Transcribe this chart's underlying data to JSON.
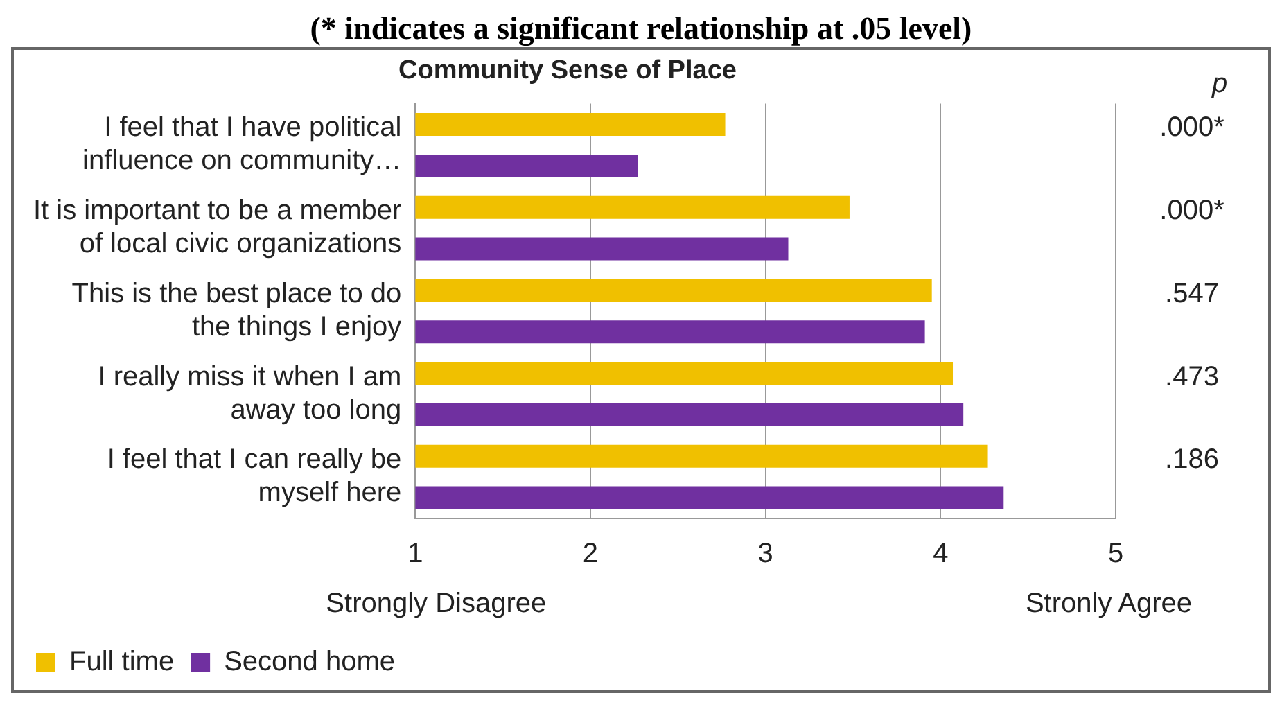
{
  "chart_data": {
    "type": "bar",
    "orientation": "horizontal",
    "title": "Community Sense of Place",
    "subtitle": "(* indicates a significant relationship at .05 level)",
    "categories": [
      "I feel that I have political influence on community…",
      "It is important to be a member of local civic organizations",
      "This is the best place to do the things I enjoy",
      "I really miss it when I am away too long",
      "I feel that I can really be myself here"
    ],
    "series": [
      {
        "name": "Full time",
        "color": "#f0c000",
        "values": [
          2.77,
          3.48,
          3.95,
          4.07,
          4.27
        ]
      },
      {
        "name": "Second home",
        "color": "#7030a0",
        "values": [
          2.27,
          3.13,
          3.91,
          4.13,
          4.36
        ]
      }
    ],
    "xlim": [
      1,
      5
    ],
    "xticks": [
      1,
      2,
      3,
      4,
      5
    ],
    "grid": "x",
    "legend": "bottom left",
    "annotations": [
      "p",
      "Strongly Disagree",
      "Stronly Agree",
      ".000*",
      ".000*",
      ".547",
      ".473",
      ".186"
    ]
  }
}
